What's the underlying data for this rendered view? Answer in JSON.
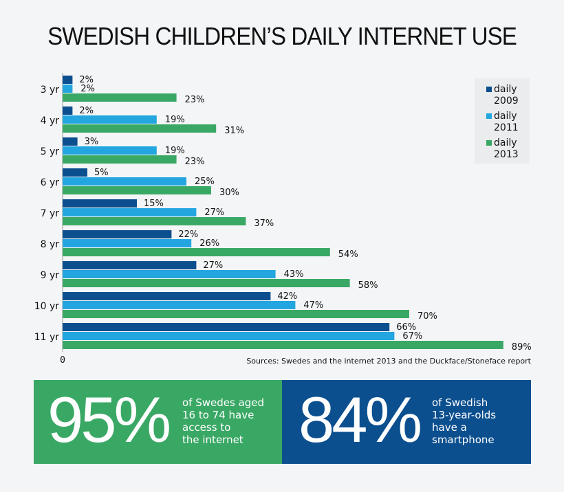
{
  "title": "SWEDISH CHILDREN’S DAILY INTERNET USE",
  "source": "Sources: Swedes and the internet 2013 and the Duckface/Stoneface report",
  "stats": [
    {
      "value": "95%",
      "text": [
        "of Swedes aged",
        "16 to 74 have",
        "access to",
        "the internet"
      ],
      "color": "#3aa865"
    },
    {
      "value": "84%",
      "text": [
        "of Swedish",
        "13-year-olds",
        "have a",
        "smartphone"
      ],
      "color": "#0c4f8f"
    }
  ],
  "chart_data": {
    "type": "bar",
    "orientation": "horizontal",
    "categories": [
      "3 yr",
      "4 yr",
      "5 yr",
      "6 yr",
      "7 yr",
      "8 yr",
      "9 yr",
      "10 yr",
      "11 yr"
    ],
    "series": [
      {
        "name": "daily 2009",
        "legend": [
          "daily",
          "2009"
        ],
        "color": "#0c4f8f",
        "values": [
          2,
          2,
          3,
          5,
          15,
          22,
          27,
          42,
          66
        ]
      },
      {
        "name": "daily 2011",
        "legend": [
          "daily",
          "2011"
        ],
        "color": "#23a6e0",
        "values": [
          2,
          19,
          19,
          25,
          27,
          26,
          43,
          47,
          67
        ]
      },
      {
        "name": "daily 2013",
        "legend": [
          "daily",
          "2013"
        ],
        "color": "#3aa865",
        "values": [
          23,
          31,
          23,
          30,
          37,
          54,
          58,
          70,
          89
        ]
      }
    ],
    "value_suffix": "%",
    "x_tick": "0",
    "xlim": [
      0,
      90
    ],
    "legend_position": "top-right",
    "grid": false
  }
}
